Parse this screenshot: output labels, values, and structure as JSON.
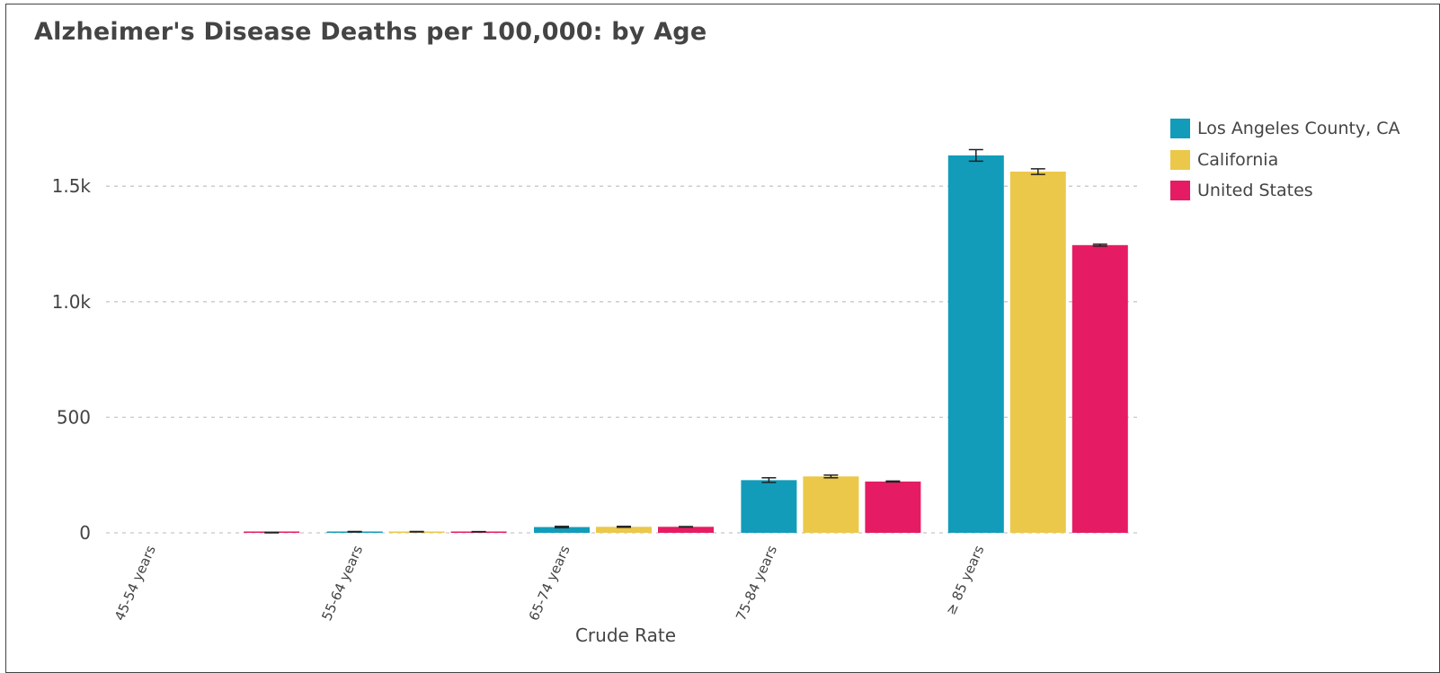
{
  "chart_data": {
    "type": "bar",
    "title": "Alzheimer's Disease Deaths per 100,000: by Age",
    "xlabel": "Crude Rate",
    "ylabel": "",
    "categories": [
      "45-54 years",
      "55-64 years",
      "65-74 years",
      "75-84 years",
      "≥ 85 years"
    ],
    "ylim": [
      0,
      1800
    ],
    "yticks": [
      0,
      500,
      1000,
      1500
    ],
    "ytick_labels": [
      "0",
      "500",
      "1.0k",
      "1.5k"
    ],
    "grid": "horizontal dashed",
    "legend_position": "right",
    "series": [
      {
        "name": "Los Angeles County, CA",
        "color": "#129cba",
        "values": [
          null,
          5,
          25,
          228,
          1633
        ],
        "error": [
          null,
          1,
          3,
          10,
          25
        ]
      },
      {
        "name": "California",
        "color": "#ebc84a",
        "values": [
          null,
          5,
          26,
          244,
          1563
        ],
        "error": [
          null,
          1,
          2,
          6,
          12
        ]
      },
      {
        "name": "United States",
        "color": "#e51c63",
        "values": [
          1,
          5,
          26,
          222,
          1245
        ],
        "error": [
          1,
          0.5,
          1,
          2,
          4
        ]
      }
    ]
  }
}
